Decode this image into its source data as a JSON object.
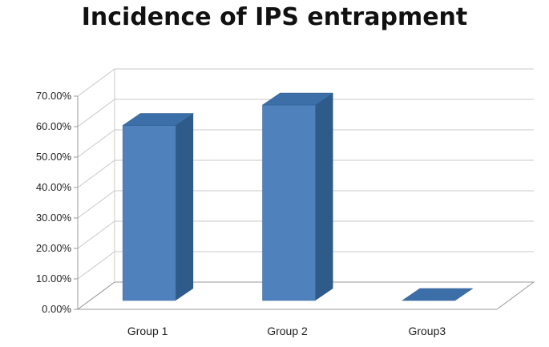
{
  "chart_data": {
    "type": "bar",
    "style": "3d-column",
    "title": "Incidence of IPS entrapment",
    "xlabel": "",
    "ylabel": "",
    "categories": [
      "Group 1",
      "Group 2",
      "Group3"
    ],
    "values": [
      57.5,
      64.2,
      0.0
    ],
    "value_unit": "%",
    "ylim": [
      0,
      70
    ],
    "yticks": [
      0,
      10,
      20,
      30,
      40,
      50,
      60,
      70
    ],
    "ytick_labels": [
      "0.00%",
      "10.00%",
      "20.00%",
      "30.00%",
      "40.00%",
      "50.00%",
      "60.00%",
      "70.00%"
    ],
    "grid": true,
    "legend": "none",
    "colors": {
      "bar_front": "#4F81BD",
      "bar_side": "#2E5B8A",
      "bar_top": "#3C6FA8",
      "gridline": "#C8C8C8",
      "axis": "#9A9A9A"
    }
  }
}
